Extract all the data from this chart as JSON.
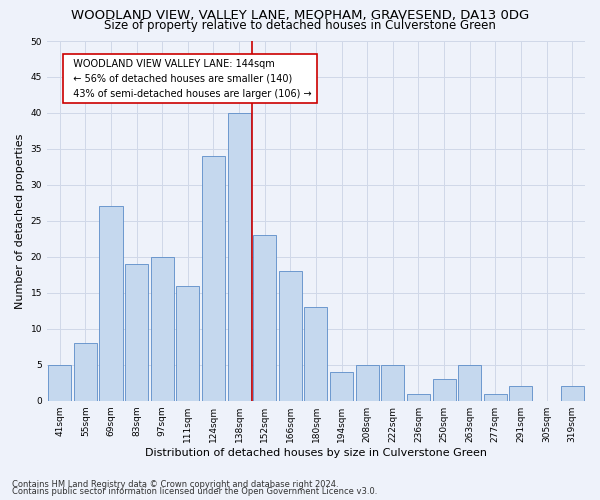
{
  "title": "WOODLAND VIEW, VALLEY LANE, MEOPHAM, GRAVESEND, DA13 0DG",
  "subtitle": "Size of property relative to detached houses in Culverstone Green",
  "xlabel": "Distribution of detached houses by size in Culverstone Green",
  "ylabel": "Number of detached properties",
  "footnote1": "Contains HM Land Registry data © Crown copyright and database right 2024.",
  "footnote2": "Contains public sector information licensed under the Open Government Licence v3.0.",
  "categories": [
    "41sqm",
    "55sqm",
    "69sqm",
    "83sqm",
    "97sqm",
    "111sqm",
    "124sqm",
    "138sqm",
    "152sqm",
    "166sqm",
    "180sqm",
    "194sqm",
    "208sqm",
    "222sqm",
    "236sqm",
    "250sqm",
    "263sqm",
    "277sqm",
    "291sqm",
    "305sqm",
    "319sqm"
  ],
  "values": [
    5,
    8,
    27,
    19,
    20,
    16,
    34,
    40,
    23,
    18,
    13,
    4,
    5,
    5,
    1,
    3,
    5,
    1,
    2,
    0,
    2
  ],
  "bar_color": "#c5d8ee",
  "bar_edge_color": "#5b8cc8",
  "vline_x_index": 7.5,
  "vline_color": "#cc0000",
  "annotation_text": "  WOODLAND VIEW VALLEY LANE: 144sqm\n  ← 56% of detached houses are smaller (140)\n  43% of semi-detached houses are larger (106) →",
  "annotation_box_color": "#ffffff",
  "annotation_box_edge": "#cc0000",
  "ylim": [
    0,
    50
  ],
  "yticks": [
    0,
    5,
    10,
    15,
    20,
    25,
    30,
    35,
    40,
    45,
    50
  ],
  "grid_color": "#d0d8e8",
  "background_color": "#eef2fa",
  "title_fontsize": 9.5,
  "subtitle_fontsize": 8.5,
  "xlabel_fontsize": 8,
  "ylabel_fontsize": 8,
  "tick_fontsize": 6.5,
  "annotation_fontsize": 7,
  "footnote_fontsize": 6
}
